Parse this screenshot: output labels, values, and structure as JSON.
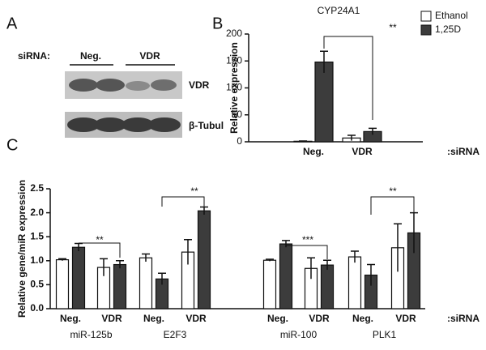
{
  "panel_a": {
    "label": "A",
    "siRNA": "siRNA:",
    "lanes": [
      "Neg.",
      "VDR"
    ],
    "bands": [
      "VDR",
      "β-Tubul"
    ]
  },
  "chart_data": [
    {
      "type": "bar",
      "panel_label": "B",
      "title": "CYP24A1",
      "y_label": "Relative expression",
      "x_suffix": ":siRNA",
      "categories": [
        "Neg.",
        "VDR"
      ],
      "series": [
        {
          "name": "Ethanol",
          "color": "#ffffff",
          "values": [
            1,
            7
          ],
          "errors": [
            0.5,
            5
          ]
        },
        {
          "name": "1,25D",
          "color": "#3c3c3c",
          "values": [
            148,
            19
          ],
          "errors": [
            20,
            6
          ]
        }
      ],
      "ylim": [
        0,
        200
      ],
      "yticks": [
        0,
        50,
        100,
        150,
        200
      ],
      "legend": "top-right",
      "annotations": [
        "**"
      ]
    },
    {
      "type": "bar",
      "panel_label": "C",
      "y_label": "Relative gene/miR expression",
      "x_suffix": ":siRNA",
      "categories": [
        "Neg.",
        "VDR",
        "Neg.",
        "VDR",
        "Neg.",
        "VDR",
        "Neg.",
        "VDR"
      ],
      "groups": [
        "miR-125b",
        "E2F3",
        "miR-100",
        "PLK1"
      ],
      "series": [
        {
          "name": "Ethanol",
          "color": "#ffffff",
          "values": [
            1.02,
            0.86,
            1.06,
            1.18,
            1.01,
            0.84,
            1.08,
            1.27
          ],
          "errors": [
            0.02,
            0.18,
            0.08,
            0.26,
            0.02,
            0.22,
            0.12,
            0.5
          ]
        },
        {
          "name": "1,25D",
          "color": "#3c3c3c",
          "values": [
            1.28,
            0.92,
            0.62,
            2.04,
            1.35,
            0.91,
            0.7,
            1.58
          ],
          "errors": [
            0.08,
            0.08,
            0.12,
            0.08,
            0.07,
            0.1,
            0.22,
            0.42
          ]
        }
      ],
      "ylim": [
        0,
        2.5
      ],
      "yticks": [
        {
          "value": 0,
          "label": "0.0"
        },
        0.5,
        {
          "value": 1,
          "label": "1.0"
        },
        1.5,
        {
          "value": 2,
          "label": "2.0"
        },
        2.5
      ],
      "annotations": [
        "**",
        "**",
        "***",
        "**"
      ]
    }
  ]
}
